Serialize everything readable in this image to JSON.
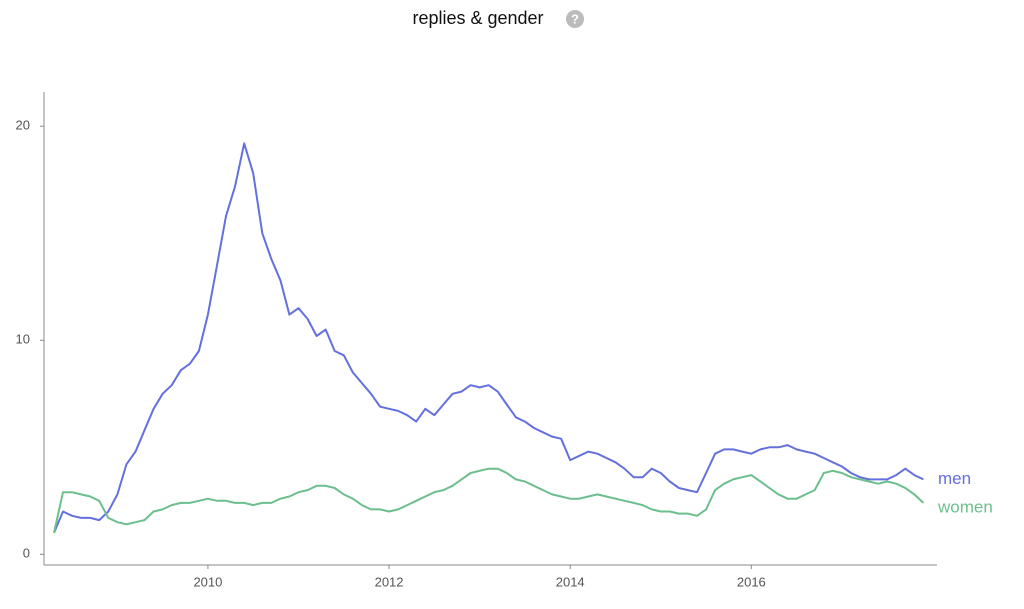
{
  "chart_data": {
    "type": "line",
    "title": "replies & gender",
    "title_icon": "?",
    "x": [
      2008.3,
      2008.4,
      2008.5,
      2008.6,
      2008.7,
      2008.8,
      2008.9,
      2009.0,
      2009.1,
      2009.2,
      2009.3,
      2009.4,
      2009.5,
      2009.6,
      2009.7,
      2009.8,
      2009.9,
      2010.0,
      2010.1,
      2010.2,
      2010.3,
      2010.4,
      2010.5,
      2010.6,
      2010.7,
      2010.8,
      2010.9,
      2011.0,
      2011.1,
      2011.2,
      2011.3,
      2011.4,
      2011.5,
      2011.6,
      2011.7,
      2011.8,
      2011.9,
      2012.0,
      2012.1,
      2012.2,
      2012.3,
      2012.4,
      2012.5,
      2012.6,
      2012.7,
      2012.8,
      2012.9,
      2013.0,
      2013.1,
      2013.2,
      2013.3,
      2013.4,
      2013.5,
      2013.6,
      2013.7,
      2013.8,
      2013.9,
      2014.0,
      2014.1,
      2014.2,
      2014.3,
      2014.4,
      2014.5,
      2014.6,
      2014.7,
      2014.8,
      2014.9,
      2015.0,
      2015.1,
      2015.2,
      2015.3,
      2015.4,
      2015.5,
      2015.6,
      2015.7,
      2015.8,
      2015.9,
      2016.0,
      2016.1,
      2016.2,
      2016.3,
      2016.4,
      2016.5,
      2016.6,
      2016.7,
      2016.8,
      2016.9,
      2017.0,
      2017.1,
      2017.2,
      2017.3,
      2017.4,
      2017.5,
      2017.6,
      2017.7,
      2017.8,
      2017.9
    ],
    "series": [
      {
        "name": "men",
        "color": "#6470dd",
        "values": [
          1.0,
          2.0,
          1.8,
          1.7,
          1.7,
          1.6,
          2.0,
          2.8,
          4.2,
          4.8,
          5.8,
          6.8,
          7.5,
          7.9,
          8.6,
          8.9,
          9.5,
          11.2,
          13.5,
          15.8,
          17.2,
          19.2,
          17.8,
          15.0,
          13.8,
          12.8,
          11.2,
          11.5,
          11.0,
          10.2,
          10.5,
          9.5,
          9.3,
          8.5,
          8.0,
          7.5,
          6.9,
          6.8,
          6.7,
          6.5,
          6.2,
          6.8,
          6.5,
          7.0,
          7.5,
          7.6,
          7.9,
          7.8,
          7.9,
          7.6,
          7.0,
          6.4,
          6.2,
          5.9,
          5.7,
          5.5,
          5.4,
          4.4,
          4.6,
          4.8,
          4.7,
          4.5,
          4.3,
          4.0,
          3.6,
          3.6,
          4.0,
          3.8,
          3.4,
          3.1,
          3.0,
          2.9,
          3.8,
          4.7,
          4.9,
          4.9,
          4.8,
          4.7,
          4.9,
          5.0,
          5.0,
          5.1,
          4.9,
          4.8,
          4.7,
          4.5,
          4.3,
          4.1,
          3.8,
          3.6,
          3.5,
          3.5,
          3.5,
          3.7,
          4.0,
          3.7,
          3.5
        ]
      },
      {
        "name": "women",
        "color": "#6cbf8c",
        "values": [
          1.0,
          2.9,
          2.9,
          2.8,
          2.7,
          2.5,
          1.7,
          1.5,
          1.4,
          1.5,
          1.6,
          2.0,
          2.1,
          2.3,
          2.4,
          2.4,
          2.5,
          2.6,
          2.5,
          2.5,
          2.4,
          2.4,
          2.3,
          2.4,
          2.4,
          2.6,
          2.7,
          2.9,
          3.0,
          3.2,
          3.2,
          3.1,
          2.8,
          2.6,
          2.3,
          2.1,
          2.1,
          2.0,
          2.1,
          2.3,
          2.5,
          2.7,
          2.9,
          3.0,
          3.2,
          3.5,
          3.8,
          3.9,
          4.0,
          4.0,
          3.8,
          3.5,
          3.4,
          3.2,
          3.0,
          2.8,
          2.7,
          2.6,
          2.6,
          2.7,
          2.8,
          2.7,
          2.6,
          2.5,
          2.4,
          2.3,
          2.1,
          2.0,
          2.0,
          1.9,
          1.9,
          1.8,
          2.1,
          3.0,
          3.3,
          3.5,
          3.6,
          3.7,
          3.4,
          3.1,
          2.8,
          2.6,
          2.6,
          2.8,
          3.0,
          3.8,
          3.9,
          3.8,
          3.6,
          3.5,
          3.4,
          3.3,
          3.4,
          3.3,
          3.1,
          2.8,
          2.4
        ]
      }
    ],
    "xlim": [
      2008.19,
      2018.05
    ],
    "xticks": [
      2010,
      2012,
      2014,
      2016
    ],
    "ylim": [
      -0.5,
      21.6
    ],
    "yticks": [
      0,
      10,
      20
    ],
    "grid": false
  }
}
